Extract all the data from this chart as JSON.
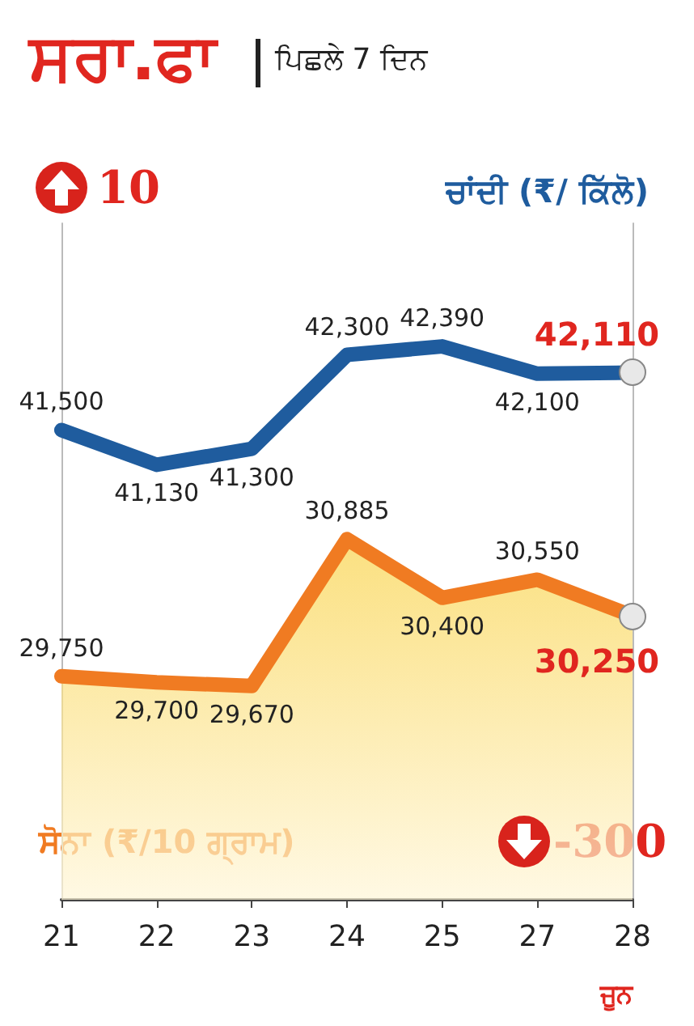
{
  "chart_data": {
    "type": "line",
    "title": "ਸਰਾ.ਫਾ",
    "subtitle": "ਪਿਛਲੇ 7 ਦਿਨ",
    "xlabel": "ਜੂਨ",
    "categories": [
      "21",
      "22",
      "23",
      "24",
      "25",
      "27",
      "28"
    ],
    "series": [
      {
        "name": "ਚਾਂਦੀ (₹/ ਕਿੱਲੋ)",
        "color": "#1f5c9e",
        "values": [
          41500,
          41130,
          41300,
          42300,
          42390,
          42100,
          42110
        ],
        "value_labels": [
          "41,500",
          "41,130",
          "41,300",
          "42,300",
          "42,390",
          "42,100",
          "42,110"
        ]
      },
      {
        "name": "ਸੋਨਾ (₹/10 ਗ੍ਰਾਮ)",
        "type": "area",
        "axis": "y2",
        "color": "#f07b22",
        "values": [
          29750,
          29700,
          29670,
          30885,
          30400,
          30550,
          30250
        ],
        "value_labels": [
          "29,750",
          "29,700",
          "29,670",
          "30,885",
          "30,400",
          "30,550",
          "30,250"
        ]
      }
    ],
    "ylim": [
      36500,
      43700
    ],
    "y2lim": [
      27900,
      33500
    ],
    "tick_labels": "x",
    "annotations": [
      "10",
      "-300"
    ]
  }
}
